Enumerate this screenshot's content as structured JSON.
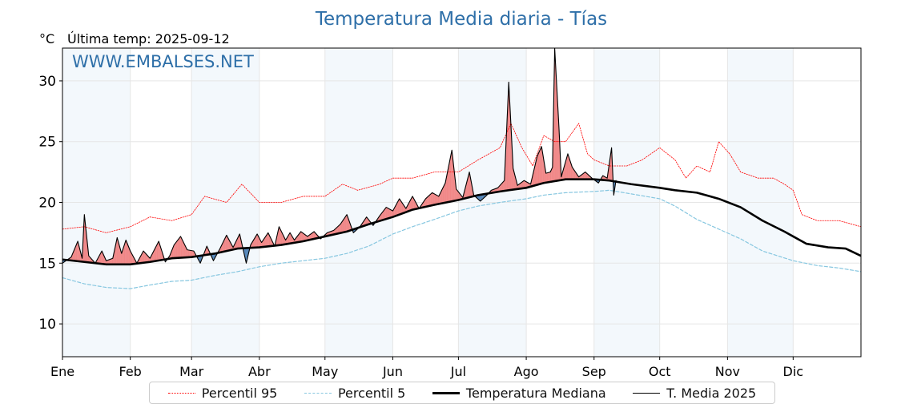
{
  "chart_data": {
    "type": "line",
    "title": "Temperatura Media diaria - Tías",
    "unit_label": "°C",
    "last_temp_label": "Última temp: 2025-09-12",
    "watermark": "WWW.EMBALSES.NET",
    "xlabel": "",
    "ylabel": "",
    "ylim": [
      7.3,
      32.7
    ],
    "xlim": [
      0,
      365
    ],
    "y_ticks": [
      10,
      15,
      20,
      25,
      30
    ],
    "month_ticks": [
      {
        "label": "Ene",
        "day": 0
      },
      {
        "label": "Feb",
        "day": 31
      },
      {
        "label": "Mar",
        "day": 59
      },
      {
        "label": "Abr",
        "day": 90
      },
      {
        "label": "May",
        "day": 120
      },
      {
        "label": "Jun",
        "day": 151
      },
      {
        "label": "Jul",
        "day": 181
      },
      {
        "label": "Ago",
        "day": 212
      },
      {
        "label": "Sep",
        "day": 243
      },
      {
        "label": "Oct",
        "day": 273
      },
      {
        "label": "Nov",
        "day": 304
      },
      {
        "label": "Dic",
        "day": 334
      }
    ],
    "shaded_months": [
      "Ene",
      "Mar",
      "May",
      "Jul",
      "Sep",
      "Nov"
    ],
    "grid": true,
    "legend_position": "bottom",
    "colors": {
      "p95": "#ff0000",
      "p5": "#87c7e0",
      "median": "#000000",
      "media2025": "#000000",
      "above_fill": "#f08080",
      "below_fill": "#4a7fb5",
      "shade": "#f3f8fc",
      "title": "#2e6fa8",
      "watermark": "#2e6fa8"
    },
    "series": [
      {
        "name": "Percentil 95",
        "key": "p95",
        "style": "dotted",
        "points": [
          [
            0,
            17.8
          ],
          [
            10,
            18.0
          ],
          [
            20,
            17.5
          ],
          [
            31,
            18.0
          ],
          [
            40,
            18.8
          ],
          [
            50,
            18.5
          ],
          [
            59,
            19.0
          ],
          [
            65,
            20.5
          ],
          [
            75,
            20.0
          ],
          [
            82,
            21.5
          ],
          [
            90,
            20.0
          ],
          [
            100,
            20.0
          ],
          [
            110,
            20.5
          ],
          [
            120,
            20.5
          ],
          [
            128,
            21.5
          ],
          [
            135,
            21.0
          ],
          [
            145,
            21.5
          ],
          [
            151,
            22.0
          ],
          [
            160,
            22.0
          ],
          [
            170,
            22.5
          ],
          [
            181,
            22.5
          ],
          [
            190,
            23.5
          ],
          [
            200,
            24.5
          ],
          [
            205,
            26.5
          ],
          [
            210,
            24.5
          ],
          [
            215,
            23.0
          ],
          [
            220,
            25.5
          ],
          [
            225,
            25.0
          ],
          [
            230,
            25.0
          ],
          [
            236,
            26.5
          ],
          [
            240,
            24.0
          ],
          [
            243,
            23.5
          ],
          [
            250,
            23.0
          ],
          [
            258,
            23.0
          ],
          [
            265,
            23.5
          ],
          [
            273,
            24.5
          ],
          [
            280,
            23.5
          ],
          [
            285,
            22.0
          ],
          [
            290,
            23.0
          ],
          [
            296,
            22.5
          ],
          [
            300,
            25.0
          ],
          [
            305,
            24.0
          ],
          [
            310,
            22.5
          ],
          [
            318,
            22.0
          ],
          [
            325,
            22.0
          ],
          [
            330,
            21.5
          ],
          [
            334,
            21.0
          ],
          [
            338,
            19.0
          ],
          [
            345,
            18.5
          ],
          [
            355,
            18.5
          ],
          [
            365,
            18.0
          ]
        ]
      },
      {
        "name": "Percentil 5",
        "key": "p5",
        "style": "dashed",
        "points": [
          [
            0,
            13.8
          ],
          [
            10,
            13.3
          ],
          [
            20,
            13.0
          ],
          [
            31,
            12.9
          ],
          [
            40,
            13.2
          ],
          [
            50,
            13.5
          ],
          [
            59,
            13.6
          ],
          [
            70,
            14.0
          ],
          [
            80,
            14.3
          ],
          [
            90,
            14.7
          ],
          [
            100,
            15.0
          ],
          [
            110,
            15.2
          ],
          [
            120,
            15.4
          ],
          [
            130,
            15.8
          ],
          [
            140,
            16.4
          ],
          [
            151,
            17.4
          ],
          [
            160,
            18.0
          ],
          [
            170,
            18.6
          ],
          [
            181,
            19.3
          ],
          [
            190,
            19.7
          ],
          [
            200,
            20.0
          ],
          [
            212,
            20.3
          ],
          [
            220,
            20.6
          ],
          [
            230,
            20.8
          ],
          [
            243,
            20.9
          ],
          [
            250,
            21.0
          ],
          [
            260,
            20.7
          ],
          [
            273,
            20.3
          ],
          [
            280,
            19.7
          ],
          [
            290,
            18.6
          ],
          [
            300,
            17.8
          ],
          [
            310,
            17.0
          ],
          [
            320,
            16.0
          ],
          [
            334,
            15.2
          ],
          [
            345,
            14.8
          ],
          [
            355,
            14.6
          ],
          [
            365,
            14.3
          ]
        ]
      },
      {
        "name": "Temperatura Mediana",
        "key": "median",
        "style": "solid-thick",
        "points": [
          [
            0,
            15.3
          ],
          [
            10,
            15.1
          ],
          [
            20,
            14.9
          ],
          [
            31,
            14.9
          ],
          [
            40,
            15.1
          ],
          [
            50,
            15.4
          ],
          [
            59,
            15.5
          ],
          [
            70,
            15.8
          ],
          [
            80,
            16.2
          ],
          [
            90,
            16.3
          ],
          [
            100,
            16.5
          ],
          [
            110,
            16.8
          ],
          [
            120,
            17.2
          ],
          [
            130,
            17.6
          ],
          [
            140,
            18.2
          ],
          [
            151,
            18.8
          ],
          [
            160,
            19.4
          ],
          [
            170,
            19.8
          ],
          [
            181,
            20.2
          ],
          [
            190,
            20.6
          ],
          [
            200,
            20.9
          ],
          [
            212,
            21.2
          ],
          [
            220,
            21.6
          ],
          [
            230,
            21.9
          ],
          [
            243,
            21.9
          ],
          [
            250,
            21.8
          ],
          [
            260,
            21.5
          ],
          [
            273,
            21.2
          ],
          [
            280,
            21.0
          ],
          [
            290,
            20.8
          ],
          [
            300,
            20.3
          ],
          [
            310,
            19.6
          ],
          [
            320,
            18.5
          ],
          [
            330,
            17.6
          ],
          [
            334,
            17.2
          ],
          [
            340,
            16.6
          ],
          [
            350,
            16.3
          ],
          [
            358,
            16.2
          ],
          [
            365,
            15.6
          ]
        ]
      },
      {
        "name": "T. Media 2025",
        "key": "media2025",
        "style": "solid-thin",
        "points": [
          [
            0,
            15.0
          ],
          [
            4,
            15.5
          ],
          [
            7,
            16.8
          ],
          [
            9,
            15.4
          ],
          [
            10,
            19.0
          ],
          [
            12,
            15.6
          ],
          [
            15,
            15.0
          ],
          [
            18,
            16.0
          ],
          [
            20,
            15.2
          ],
          [
            23,
            15.4
          ],
          [
            25,
            17.1
          ],
          [
            27,
            15.8
          ],
          [
            29,
            16.9
          ],
          [
            31,
            16.0
          ],
          [
            34,
            15.0
          ],
          [
            37,
            16.0
          ],
          [
            40,
            15.4
          ],
          [
            44,
            16.8
          ],
          [
            47,
            15.1
          ],
          [
            49,
            15.6
          ],
          [
            51,
            16.5
          ],
          [
            54,
            17.2
          ],
          [
            57,
            16.1
          ],
          [
            60,
            16.0
          ],
          [
            63,
            15.0
          ],
          [
            66,
            16.4
          ],
          [
            69,
            15.2
          ],
          [
            72,
            16.2
          ],
          [
            75,
            17.3
          ],
          [
            78,
            16.3
          ],
          [
            81,
            17.4
          ],
          [
            84,
            15.0
          ],
          [
            86,
            16.5
          ],
          [
            89,
            17.4
          ],
          [
            91,
            16.7
          ],
          [
            94,
            17.5
          ],
          [
            97,
            16.4
          ],
          [
            99,
            18.0
          ],
          [
            102,
            16.9
          ],
          [
            104,
            17.5
          ],
          [
            106,
            16.9
          ],
          [
            109,
            17.6
          ],
          [
            112,
            17.2
          ],
          [
            115,
            17.6
          ],
          [
            118,
            17.0
          ],
          [
            121,
            17.5
          ],
          [
            124,
            17.7
          ],
          [
            127,
            18.2
          ],
          [
            130,
            19.0
          ],
          [
            133,
            17.5
          ],
          [
            136,
            18.0
          ],
          [
            139,
            18.8
          ],
          [
            142,
            18.1
          ],
          [
            145,
            18.9
          ],
          [
            148,
            19.6
          ],
          [
            151,
            19.3
          ],
          [
            154,
            20.3
          ],
          [
            157,
            19.5
          ],
          [
            160,
            20.5
          ],
          [
            163,
            19.5
          ],
          [
            166,
            20.3
          ],
          [
            169,
            20.8
          ],
          [
            172,
            20.5
          ],
          [
            175,
            21.6
          ],
          [
            178,
            24.3
          ],
          [
            180,
            21.1
          ],
          [
            183,
            20.4
          ],
          [
            186,
            22.5
          ],
          [
            188,
            20.6
          ],
          [
            191,
            20.1
          ],
          [
            194,
            20.6
          ],
          [
            196,
            21.0
          ],
          [
            199,
            21.2
          ],
          [
            202,
            21.8
          ],
          [
            204,
            29.9
          ],
          [
            206,
            22.8
          ],
          [
            208,
            21.4
          ],
          [
            211,
            21.8
          ],
          [
            214,
            21.5
          ],
          [
            217,
            23.8
          ],
          [
            219,
            24.6
          ],
          [
            221,
            22.4
          ],
          [
            223,
            22.5
          ],
          [
            224,
            22.9
          ],
          [
            225,
            32.7
          ],
          [
            227,
            26.0
          ],
          [
            228,
            22.1
          ],
          [
            231,
            24.0
          ],
          [
            233,
            22.9
          ],
          [
            236,
            22.1
          ],
          [
            239,
            22.5
          ],
          [
            242,
            22.0
          ],
          [
            245,
            21.6
          ],
          [
            247,
            22.2
          ],
          [
            249,
            22.0
          ],
          [
            251,
            24.5
          ],
          [
            252,
            20.6
          ],
          [
            253,
            21.8
          ]
        ]
      }
    ]
  }
}
